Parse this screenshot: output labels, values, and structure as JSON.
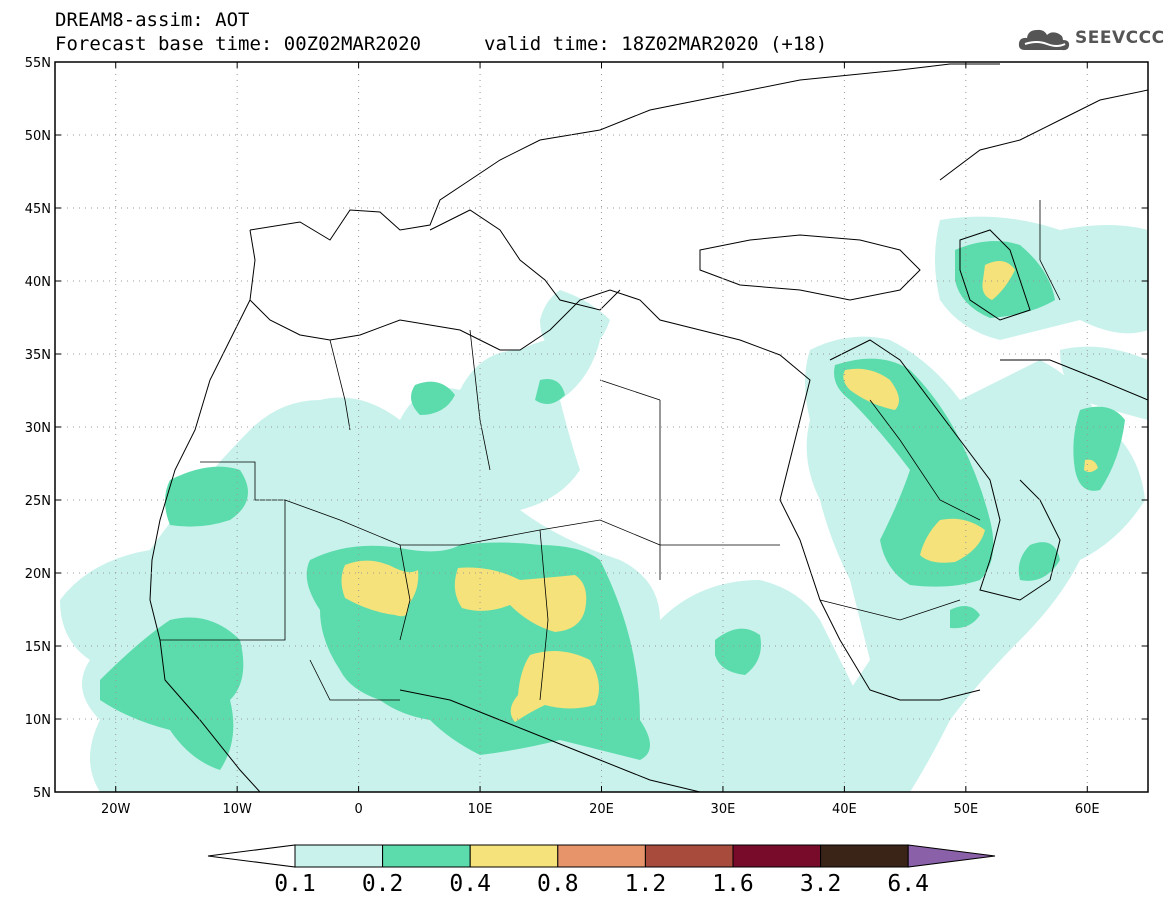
{
  "header": {
    "title": "DREAM8-assim: AOT",
    "base_time": "Forecast base time: 00Z02MAR2020",
    "valid_time": "valid time: 18Z02MAR2020 (+18)"
  },
  "logo": {
    "text": "SEEVCCC",
    "icon": "cloud-logo-icon"
  },
  "map": {
    "lon_range": [
      -25,
      65
    ],
    "lat_range": [
      5,
      55
    ],
    "grid": "dotted",
    "x_ticks": [
      {
        "value": -20,
        "label": "20W"
      },
      {
        "value": -10,
        "label": "10W"
      },
      {
        "value": 0,
        "label": "0"
      },
      {
        "value": 10,
        "label": "10E"
      },
      {
        "value": 20,
        "label": "20E"
      },
      {
        "value": 30,
        "label": "30E"
      },
      {
        "value": 40,
        "label": "40E"
      },
      {
        "value": 50,
        "label": "50E"
      },
      {
        "value": 60,
        "label": "60E"
      }
    ],
    "y_ticks": [
      {
        "value": 55,
        "label": "55N"
      },
      {
        "value": 50,
        "label": "50N"
      },
      {
        "value": 45,
        "label": "45N"
      },
      {
        "value": 40,
        "label": "40N"
      },
      {
        "value": 35,
        "label": "35N"
      },
      {
        "value": 30,
        "label": "30N"
      },
      {
        "value": 25,
        "label": "25N"
      },
      {
        "value": 20,
        "label": "20N"
      },
      {
        "value": 15,
        "label": "15N"
      },
      {
        "value": 10,
        "label": "10N"
      },
      {
        "value": 5,
        "label": "5N"
      }
    ]
  },
  "colorbar": {
    "labels": [
      "0.1",
      "0.2",
      "0.4",
      "0.8",
      "1.2",
      "1.6",
      "3.2",
      "6.4"
    ],
    "colors": [
      "#ffffff",
      "#c8f2eb",
      "#5cdcac",
      "#f5e27a",
      "#e8946a",
      "#a84a3c",
      "#780a2a",
      "#3a2418",
      "#8a60a8"
    ]
  },
  "colors": {
    "aot_0_1": "#c8f2eb",
    "aot_0_2": "#5cdcac",
    "aot_0_4": "#f5e27a"
  }
}
